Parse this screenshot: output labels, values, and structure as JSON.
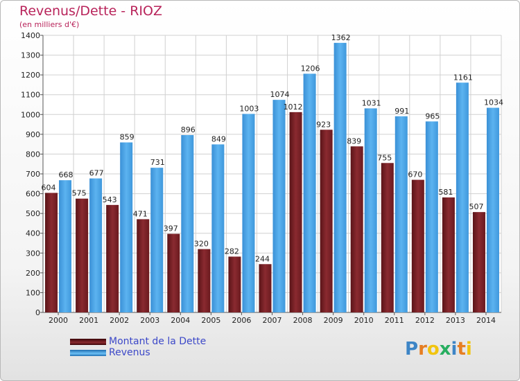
{
  "chart_data": {
    "type": "bar",
    "title": "Revenus/Dette - RIOZ",
    "subtitle": "(en milliers d'€)",
    "xlabel": "",
    "ylabel": "",
    "ylim": [
      0,
      1400
    ],
    "yticks": [
      0,
      100,
      200,
      300,
      400,
      500,
      600,
      700,
      800,
      900,
      1000,
      1100,
      1200,
      1300,
      1400
    ],
    "grid": true,
    "categories": [
      "2000",
      "2001",
      "2002",
      "2003",
      "2004",
      "2005",
      "2006",
      "2007",
      "2008",
      "2009",
      "2010",
      "2011",
      "2012",
      "2013",
      "2014"
    ],
    "series": [
      {
        "name": "Montant de la Dette",
        "color": "#7a2227",
        "values": [
          604,
          575,
          543,
          471,
          397,
          320,
          282,
          244,
          1012,
          923,
          839,
          755,
          670,
          581,
          507
        ],
        "labels": [
          "604",
          "575",
          "543",
          "471",
          "397",
          "320",
          "282",
          "244",
          "1012",
          "923",
          "839",
          "755",
          "670",
          "581",
          "507"
        ]
      },
      {
        "name": "Revenus",
        "color": "#4aa3e6",
        "values": [
          668,
          677,
          859,
          731,
          896,
          849,
          1003,
          1074,
          1206,
          1362,
          1031,
          991,
          965,
          1161,
          1034
        ],
        "labels": [
          "668",
          "677",
          "859",
          "731",
          "896",
          "849",
          "1003",
          "1074",
          "1206",
          "1362",
          "1031",
          "991",
          "965",
          "1161",
          "1034"
        ]
      }
    ],
    "legend_position": "bottom-left"
  },
  "legend": [
    {
      "label": "Montant de la Dette",
      "color": "#7a2227"
    },
    {
      "label": "Revenus",
      "color": "#4aa3e6"
    }
  ],
  "logo": {
    "text": "Proxiti",
    "letters": [
      "P",
      "r",
      "o",
      "x",
      "i",
      "t",
      "i"
    ],
    "colors": [
      "#3d85c6",
      "#e67e22",
      "#f1c40f",
      "#27ae60",
      "#3d85c6",
      "#e67e22",
      "#f1c40f"
    ]
  }
}
